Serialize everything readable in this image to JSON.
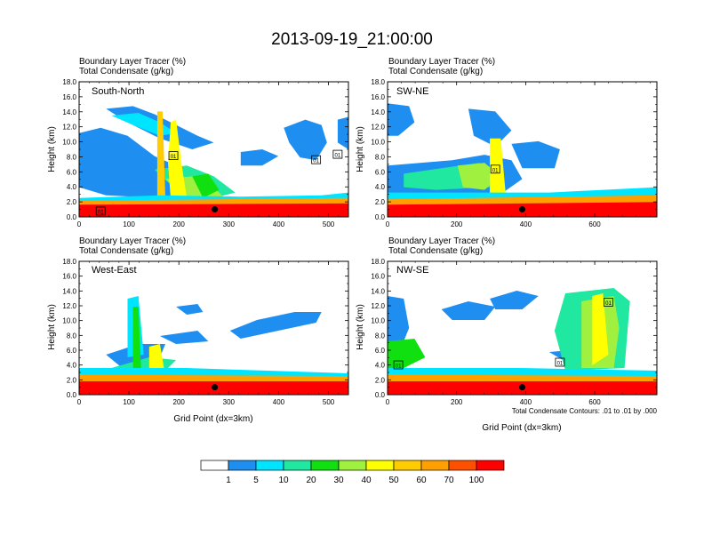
{
  "figure": {
    "title": "2013-09-19_21:00:00",
    "subtitle_line1": "Boundary Layer Tracer   (%)",
    "subtitle_line2": "Total Condensate   (g/kg)",
    "contour_note": "Total Condensate Contours: .01 to .01 by .000"
  },
  "colorbar": {
    "labels": [
      "1",
      "5",
      "10",
      "20",
      "30",
      "40",
      "50",
      "60",
      "70",
      "100"
    ],
    "colors": [
      "#ffffff",
      "#1e8ff0",
      "#00e5ff",
      "#20e8a0",
      "#10e010",
      "#a0f040",
      "#ffff00",
      "#ffcc00",
      "#ffa000",
      "#ff5000",
      "#ff0000"
    ]
  },
  "chart_data": [
    {
      "type": "heatmap",
      "panel_label": "South-North",
      "ylabel": "Height (km)",
      "xlabel": "",
      "xlim": [
        0,
        540
      ],
      "ylim": [
        0,
        18
      ],
      "xticks": [
        0,
        100,
        200,
        300,
        400,
        500
      ],
      "yticks": [
        "0.0",
        "2.0",
        "4.0",
        "6.0",
        "8.0",
        "10.0",
        "12.0",
        "14.0",
        "16.0",
        "18.0"
      ],
      "boxed_labels": [
        "01",
        "01",
        "01",
        "01"
      ],
      "marker": {
        "x": 272,
        "y": 1.0
      }
    },
    {
      "type": "heatmap",
      "panel_label": "SW-NE",
      "ylabel": "Height (km)",
      "xlabel": "",
      "xlim": [
        0,
        780
      ],
      "ylim": [
        0,
        18
      ],
      "xticks": [
        0,
        200,
        400,
        600
      ],
      "yticks": [
        "0.0",
        "2.0",
        "4.0",
        "6.0",
        "8.0",
        "10.0",
        "12.0",
        "14.0",
        "16.0",
        "18.0"
      ],
      "boxed_labels": [
        "01"
      ],
      "marker": {
        "x": 390,
        "y": 1.0
      }
    },
    {
      "type": "heatmap",
      "panel_label": "West-East",
      "ylabel": "Height (km)",
      "xlabel": "Grid Point (dx=3km)",
      "xlim": [
        0,
        540
      ],
      "ylim": [
        0,
        18
      ],
      "xticks": [
        0,
        100,
        200,
        300,
        400,
        500
      ],
      "yticks": [
        "0.0",
        "2.0",
        "4.0",
        "6.0",
        "8.0",
        "10.0",
        "12.0",
        "14.0",
        "16.0",
        "18.0"
      ],
      "boxed_labels": [],
      "marker": {
        "x": 272,
        "y": 1.0
      }
    },
    {
      "type": "heatmap",
      "panel_label": "NW-SE",
      "ylabel": "Height (km)",
      "xlabel": "Grid Point (dx=3km)",
      "xlim": [
        0,
        780
      ],
      "ylim": [
        0,
        18
      ],
      "xticks": [
        0,
        200,
        400,
        600
      ],
      "yticks": [
        "0.0",
        "2.0",
        "4.0",
        "6.0",
        "8.0",
        "10.0",
        "12.0",
        "14.0",
        "16.0",
        "18.0"
      ],
      "boxed_labels": [
        "01",
        "01",
        "01"
      ],
      "marker": {
        "x": 390,
        "y": 1.0
      }
    }
  ]
}
